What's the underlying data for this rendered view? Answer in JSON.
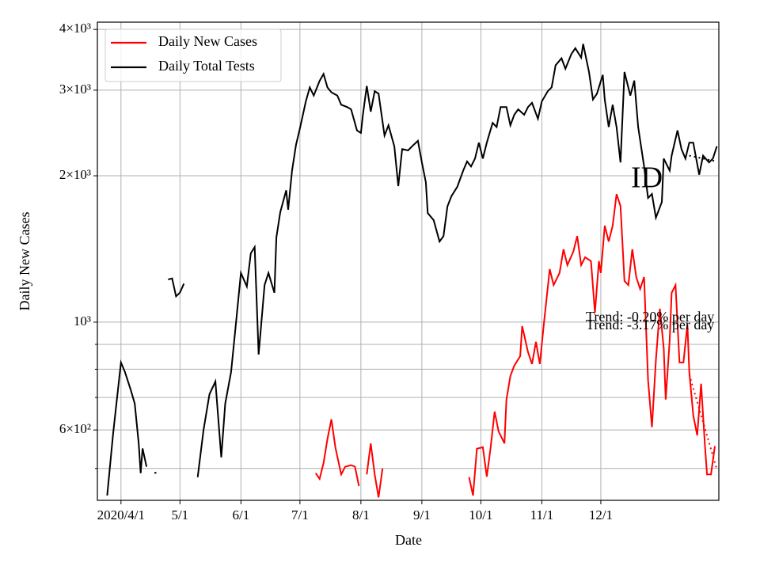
{
  "chart_data": {
    "type": "line",
    "xlabel": "Date",
    "ylabel": "Daily New Cases",
    "annotation": "ID",
    "log_y": true,
    "grid": true,
    "legend": "upper left",
    "xlim": [
      "2020-03-20",
      "2021-01-30"
    ],
    "xticks": [
      {
        "value": "2020-04-01",
        "label": "2020/4/1"
      },
      {
        "value": "2020-05-01",
        "label": "5/1"
      },
      {
        "value": "2020-06-01",
        "label": "6/1"
      },
      {
        "value": "2020-07-01",
        "label": "7/1"
      },
      {
        "value": "2020-08-01",
        "label": "8/1"
      },
      {
        "value": "2020-09-01",
        "label": "9/1"
      },
      {
        "value": "2020-10-01",
        "label": "10/1"
      },
      {
        "value": "2020-11-01",
        "label": "11/1"
      },
      {
        "value": "2020-12-01",
        "label": "12/1"
      }
    ],
    "ylim": [
      430,
      4140
    ],
    "yticks": [
      {
        "value": 600,
        "label": "6×10²"
      },
      {
        "value": 1000,
        "label": "10³"
      },
      {
        "value": 2000,
        "label": "2×10³"
      },
      {
        "value": 3000,
        "label": "3×10³"
      },
      {
        "value": 4000,
        "label": "4×10³"
      }
    ],
    "yminor_ticks": [
      500,
      700,
      800,
      900
    ],
    "series": [
      {
        "name": "Daily New Cases",
        "color": "#ff0000",
        "x": [
          "2020-07-09",
          "2020-07-11",
          "2020-07-13",
          "2020-07-15",
          "2020-07-17",
          "2020-07-19",
          "2020-07-22",
          "2020-07-24",
          "2020-07-27",
          "2020-07-29",
          "2020-07-31",
          "2020-08-02",
          "2020-08-04",
          "2020-08-06",
          "2020-08-08",
          "2020-08-10",
          "2020-08-12",
          "2020-08-14",
          "2020-09-25",
          "2020-09-27",
          "2020-09-29",
          "2020-10-02",
          "2020-10-04",
          "2020-10-06",
          "2020-10-08",
          "2020-10-10",
          "2020-10-13",
          "2020-10-14",
          "2020-10-16",
          "2020-10-18",
          "2020-10-21",
          "2020-10-22",
          "2020-10-25",
          "2020-10-27",
          "2020-10-29",
          "2020-10-31",
          "2020-11-02",
          "2020-11-05",
          "2020-11-07",
          "2020-11-10",
          "2020-11-12",
          "2020-11-14",
          "2020-11-17",
          "2020-11-19",
          "2020-11-21",
          "2020-11-23",
          "2020-11-26",
          "2020-11-28",
          "2020-11-30",
          "2020-12-01",
          "2020-12-03",
          "2020-12-05",
          "2020-12-07",
          "2020-12-09",
          "2020-12-11",
          "2020-12-13",
          "2020-12-15",
          "2020-12-17",
          "2020-12-19",
          "2020-12-21",
          "2020-12-23",
          "2020-12-25",
          "2020-12-27",
          "2020-12-29",
          "2020-12-31",
          "2021-01-02",
          "2021-01-03",
          "2021-01-05",
          "2021-01-06",
          "2021-01-08",
          "2021-01-10",
          "2021-01-12",
          "2021-01-14",
          "2021-01-15",
          "2021-01-17",
          "2021-01-19",
          "2021-01-21",
          "2021-01-23",
          "2021-01-24",
          "2021-01-26",
          "2021-01-28"
        ],
        "values": [
          489,
          476,
          513,
          575,
          631,
          553,
          486,
          504,
          508,
          504,
          460,
          null,
          486,
          563,
          486,
          436,
          500,
          null,
          480,
          440,
          549,
          553,
          481,
          553,
          655,
          596,
          563,
          693,
          775,
          814,
          851,
          981,
          867,
          820,
          911,
          820,
          989,
          1285,
          1192,
          1262,
          1412,
          1310,
          1396,
          1503,
          1310,
          1360,
          1335,
          1046,
          1335,
          1262,
          1579,
          1465,
          1579,
          1834,
          1733,
          1215,
          1192,
          1412,
          1238,
          1170,
          1238,
          761,
          608,
          835,
          1066,
          884,
          693,
          917,
          1149,
          1192,
          826,
          826,
          989,
          790,
          643,
          585,
          747,
          553,
          486,
          486,
          556
        ]
      },
      {
        "name": "Daily Total Tests",
        "color": "#000000",
        "x": [
          "2020-03-25",
          "2020-03-28",
          "2020-04-01",
          "2020-04-03",
          "2020-04-06",
          "2020-04-08",
          "2020-04-10",
          "2020-04-11",
          "2020-04-12",
          "2020-04-14",
          "2020-04-15",
          "2020-04-18",
          "2020-04-19",
          "2020-04-20",
          "2020-04-25",
          "2020-04-27",
          "2020-04-29",
          "2020-05-01",
          "2020-05-03",
          "2020-05-05",
          "2020-05-10",
          "2020-05-13",
          "2020-05-16",
          "2020-05-19",
          "2020-05-22",
          "2020-05-24",
          "2020-05-27",
          "2020-05-29",
          "2020-06-01",
          "2020-06-04",
          "2020-06-06",
          "2020-06-08",
          "2020-06-10",
          "2020-06-13",
          "2020-06-15",
          "2020-06-18",
          "2020-06-19",
          "2020-06-21",
          "2020-06-24",
          "2020-06-25",
          "2020-06-27",
          "2020-06-29",
          "2020-07-01",
          "2020-07-04",
          "2020-07-06",
          "2020-07-08",
          "2020-07-11",
          "2020-07-13",
          "2020-07-15",
          "2020-07-17",
          "2020-07-20",
          "2020-07-22",
          "2020-07-25",
          "2020-07-27",
          "2020-07-30",
          "2020-08-01",
          "2020-08-02",
          "2020-08-04",
          "2020-08-06",
          "2020-08-08",
          "2020-08-10",
          "2020-08-13",
          "2020-08-15",
          "2020-08-18",
          "2020-08-20",
          "2020-08-22",
          "2020-08-25",
          "2020-08-27",
          "2020-08-30",
          "2020-09-01",
          "2020-09-03",
          "2020-09-04",
          "2020-09-07",
          "2020-09-10",
          "2020-09-12",
          "2020-09-14",
          "2020-09-16",
          "2020-09-19",
          "2020-09-22",
          "2020-09-24",
          "2020-09-26",
          "2020-09-28",
          "2020-09-30",
          "2020-10-02",
          "2020-10-04",
          "2020-10-07",
          "2020-10-09",
          "2020-10-11",
          "2020-10-14",
          "2020-10-16",
          "2020-10-18",
          "2020-10-20",
          "2020-10-23",
          "2020-10-25",
          "2020-10-27",
          "2020-10-30",
          "2020-11-01",
          "2020-11-04",
          "2020-11-06",
          "2020-11-08",
          "2020-11-11",
          "2020-11-13",
          "2020-11-16",
          "2020-11-18",
          "2020-11-21",
          "2020-11-22",
          "2020-11-25",
          "2020-11-27",
          "2020-11-29",
          "2020-12-02",
          "2020-12-03",
          "2020-12-05",
          "2020-12-07",
          "2020-12-09",
          "2020-12-11",
          "2020-12-13",
          "2020-12-16",
          "2020-12-18",
          "2020-12-20",
          "2020-12-23",
          "2020-12-25",
          "2020-12-27",
          "2020-12-29",
          "2021-01-01",
          "2021-01-02",
          "2021-01-05",
          "2021-01-06",
          "2021-01-09",
          "2021-01-11",
          "2021-01-13",
          "2021-01-15",
          "2021-01-17",
          "2021-01-20",
          "2021-01-22",
          "2021-01-25",
          "2021-01-27",
          "2021-01-29"
        ],
        "values": [
          440,
          590,
          826,
          790,
          725,
          680,
          563,
          489,
          550,
          504,
          null,
          490,
          490,
          null,
          1224,
          1230,
          1130,
          1150,
          1200,
          null,
          480,
          600,
          711,
          755,
          527,
          680,
          790,
          952,
          1262,
          1184,
          1385,
          1427,
          858,
          1192,
          1262,
          1149,
          1493,
          1683,
          1867,
          1703,
          2050,
          2315,
          2505,
          2845,
          3040,
          2925,
          3135,
          3240,
          3040,
          2970,
          2925,
          2800,
          2770,
          2740,
          2480,
          2450,
          2670,
          3060,
          2710,
          2985,
          2950,
          2420,
          2540,
          2300,
          1905,
          2270,
          2255,
          2300,
          2360,
          2130,
          1940,
          1676,
          1621,
          1465,
          1503,
          1730,
          1816,
          1898,
          2050,
          2140,
          2090,
          2170,
          2340,
          2170,
          2340,
          2570,
          2520,
          2770,
          2770,
          2540,
          2670,
          2740,
          2670,
          2770,
          2825,
          2620,
          2845,
          2985,
          3040,
          3375,
          3490,
          3320,
          3560,
          3660,
          3500,
          3735,
          3270,
          2870,
          2950,
          3225,
          2870,
          2520,
          2800,
          2520,
          2130,
          3270,
          2925,
          3140,
          2520,
          2090,
          1800,
          1835,
          1640,
          1766,
          2170,
          2050,
          2200,
          2480,
          2270,
          2170,
          2340,
          2340,
          2010,
          2200,
          2130,
          2170,
          2300
        ]
      }
    ],
    "trends": [
      {
        "label": "Trend: -0.20% per day",
        "color": "#000000",
        "x": [
          "2021-01-15",
          "2021-01-29"
        ],
        "values": [
          2200,
          2140
        ]
      },
      {
        "label": "Trend: -3.17% per day",
        "color": "#ff0000",
        "x": [
          "2021-01-15",
          "2021-01-29"
        ],
        "values": [
          780,
          498
        ]
      }
    ]
  }
}
